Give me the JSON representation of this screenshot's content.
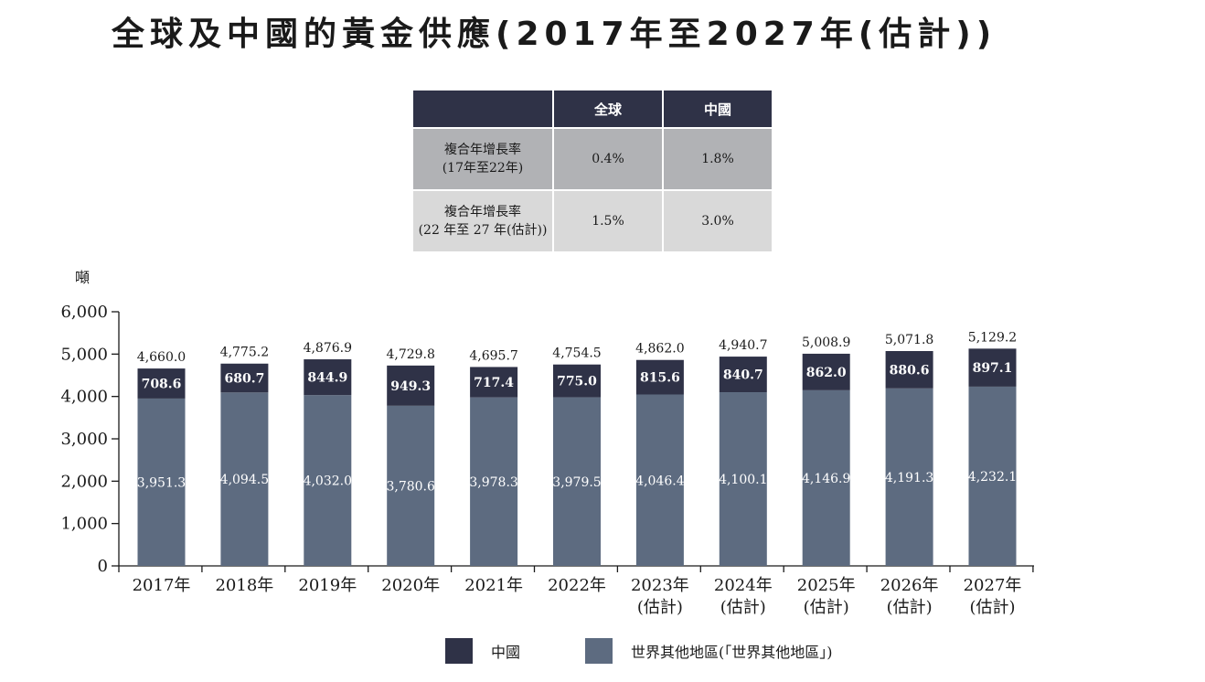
{
  "title": "全球及中國的黃金供應(2017年至2027年(估計))",
  "table": {
    "headers": [
      "",
      "全球",
      "中國"
    ],
    "rows": [
      {
        "label_line1": "複合年增長率",
        "label_line2": "(17年至22年)",
        "global": "0.4%",
        "china": "1.8%"
      },
      {
        "label_line1": "複合年增長率",
        "label_line2": "(22 年至 27 年(估計))",
        "global": "1.5%",
        "china": "3.0%"
      }
    ]
  },
  "unit_label": "噸",
  "colors": {
    "china": "#2f3247",
    "rest": "#5d6b80",
    "header": "#2f3247",
    "row1": "#b1b2b5",
    "row2": "#d9d9d9"
  },
  "legend": {
    "china": "中國",
    "rest": "世界其他地區(「世界其他地區」)"
  },
  "chart_data": {
    "type": "bar",
    "stacked": true,
    "categories": [
      "2017年",
      "2018年",
      "2019年",
      "2020年",
      "2021年",
      "2022年",
      "2023年\n(估計)",
      "2024年\n(估計)",
      "2025年\n(估計)",
      "2026年\n(估計)",
      "2027年\n(估計)"
    ],
    "series": [
      {
        "name": "世界其他地區(「世界其他地區」)",
        "key": "rest",
        "values": [
          3951.3,
          4094.5,
          4032.0,
          3780.6,
          3978.3,
          3979.5,
          4046.4,
          4100.1,
          4146.9,
          4191.3,
          4232.1
        ],
        "labels": [
          "3,951.3",
          "4,094.5",
          "4,032.0",
          "3,780.6",
          "3,978.3",
          "3,979.5",
          "4,046.4",
          "4,100.1",
          "4,146.9",
          "4,191.3",
          "4,232.1"
        ]
      },
      {
        "name": "中國",
        "key": "china",
        "values": [
          708.6,
          680.7,
          844.9,
          949.3,
          717.4,
          775.0,
          815.6,
          840.7,
          862.0,
          880.6,
          897.1
        ],
        "labels": [
          "708.6",
          "680.7",
          "844.9",
          "949.3",
          "717.4",
          "775.0",
          "815.6",
          "840.7",
          "862.0",
          "880.6",
          "897.1"
        ]
      }
    ],
    "totals": [
      4660.0,
      4775.2,
      4876.9,
      4729.8,
      4695.7,
      4754.5,
      4862.0,
      4940.7,
      5008.9,
      5071.8,
      5129.2
    ],
    "total_labels": [
      "4,660.0",
      "4,775.2",
      "4,876.9",
      "4,729.8",
      "4,695.7",
      "4,754.5",
      "4,862.0",
      "4,940.7",
      "5,008.9",
      "5,071.8",
      "5,129.2"
    ],
    "ylabel": "噸",
    "ylim": [
      0,
      6000
    ],
    "yticks": [
      0,
      1000,
      2000,
      3000,
      4000,
      5000,
      6000
    ],
    "ytick_labels": [
      "0",
      "1,000",
      "2,000",
      "3,000",
      "4,000",
      "5,000",
      "6,000"
    ],
    "grid": false,
    "legend_position": "bottom"
  }
}
